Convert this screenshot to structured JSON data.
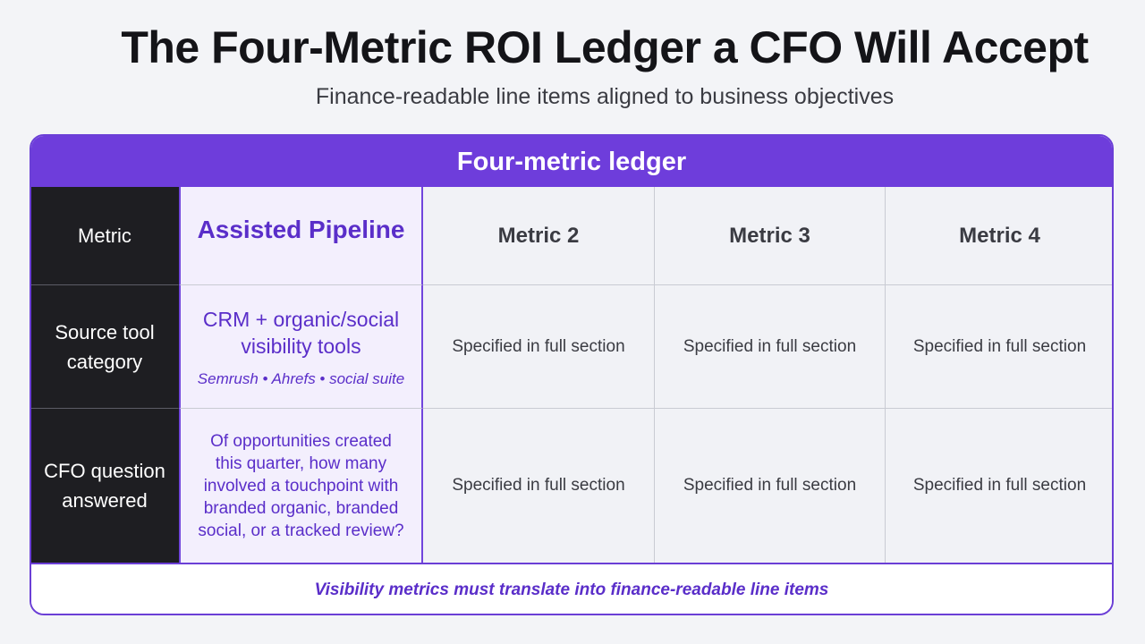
{
  "page": {
    "title": "The Four-Metric ROI Ledger a CFO Will Accept",
    "subtitle": "Finance-readable line items aligned to business objectives"
  },
  "ledger": {
    "header": "Four-metric ledger",
    "row_labels": [
      "Metric",
      "Source tool category",
      "CFO question answered"
    ],
    "columns": [
      {
        "metric": "Assisted Pipeline",
        "source_tool_category": "CRM + organic/social visibility tools",
        "source_tools": "Semrush • Ahrefs • social suite",
        "cfo_question": "Of opportunities created this quarter, how many involved a touchpoint with branded organic, branded social, or a tracked review?"
      },
      {
        "metric": "Metric 2",
        "source_tool_category": "Specified in full section",
        "cfo_question": "Specified in full section"
      },
      {
        "metric": "Metric 3",
        "source_tool_category": "Specified in full section",
        "cfo_question": "Specified in full section"
      },
      {
        "metric": "Metric 4",
        "source_tool_category": "Specified in full section",
        "cfo_question": "Specified in full section"
      }
    ],
    "footer_note": "Visibility metrics must translate into finance-readable line items"
  },
  "colors": {
    "accent": "#6e3ddb",
    "accent_text": "#5a2ec9",
    "label_column_bg": "#1e1e22",
    "highlight_column_bg": "#f3effd"
  }
}
